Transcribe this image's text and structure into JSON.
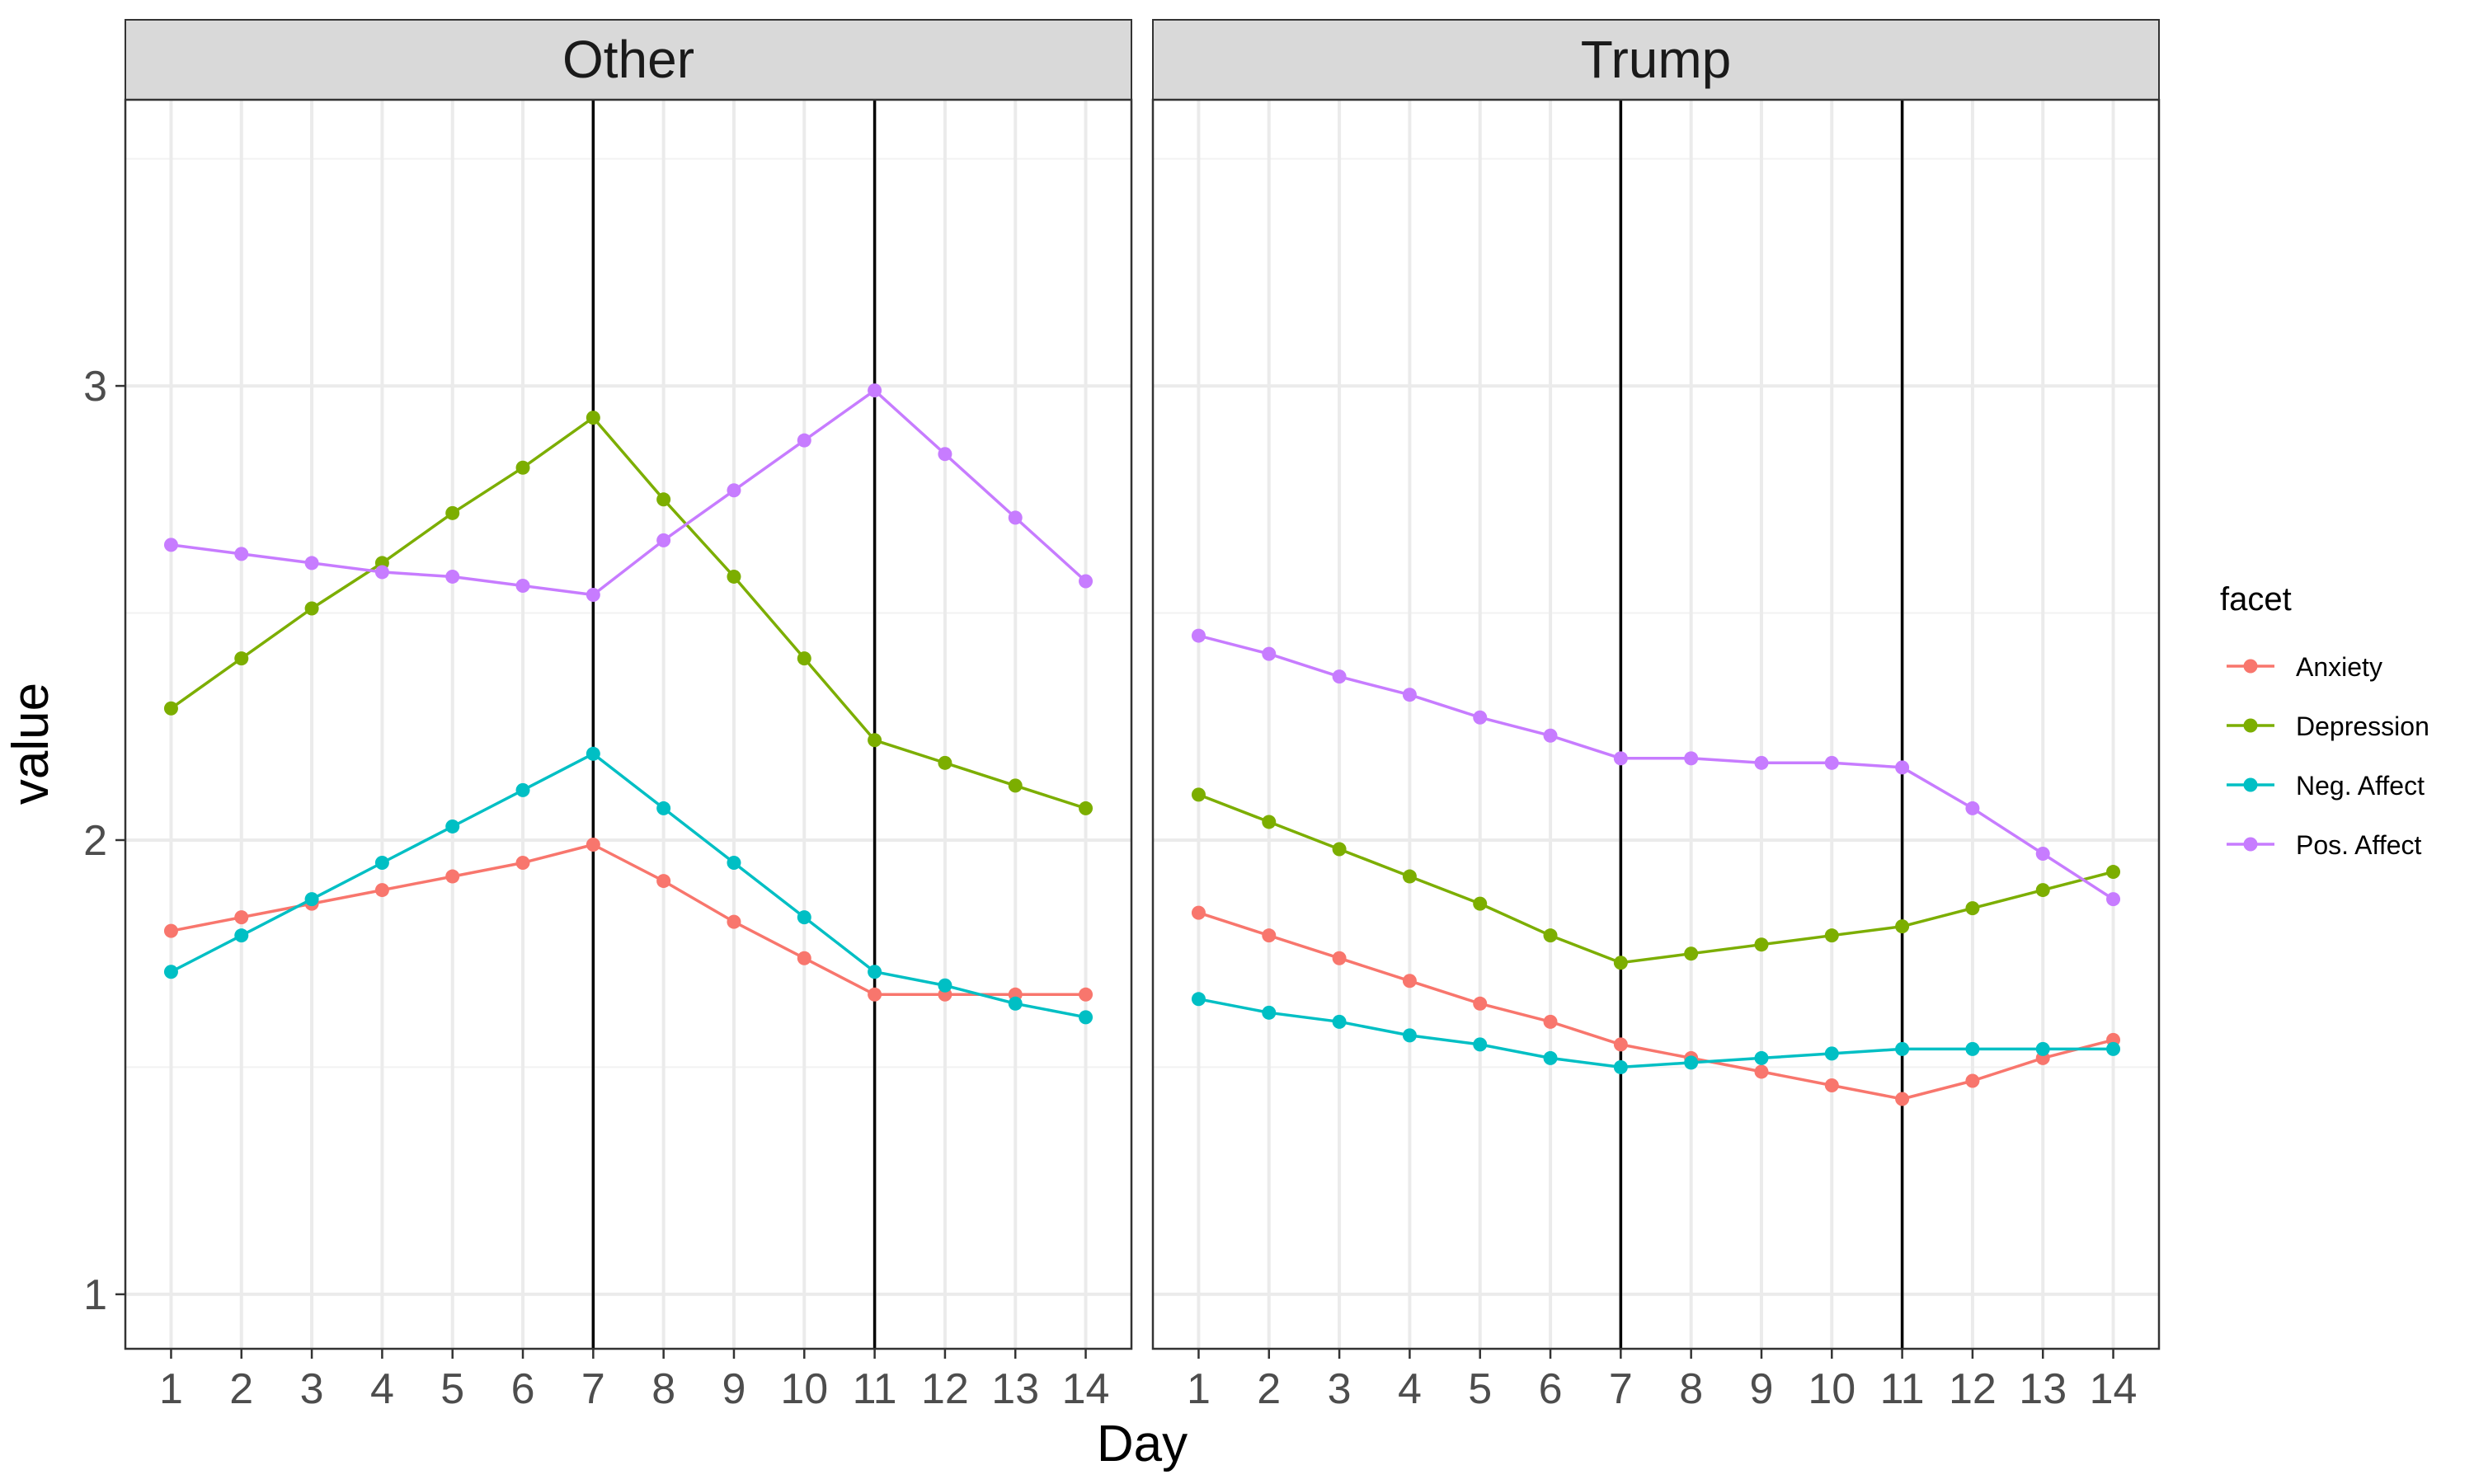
{
  "chart_data": {
    "type": "line",
    "facet_var": "facet",
    "ylabel": "value",
    "xlabel": "Day",
    "x": [
      1,
      2,
      3,
      4,
      5,
      6,
      7,
      8,
      9,
      10,
      11,
      12,
      13,
      14
    ],
    "x_tick_labels": [
      "1",
      "2",
      "3",
      "4",
      "5",
      "6",
      "7",
      "8",
      "9",
      "10",
      "11",
      "12",
      "13",
      "14"
    ],
    "y_ticks": [
      1,
      2,
      3
    ],
    "y_tick_labels": [
      "1",
      "2",
      "3"
    ],
    "ylim": [
      0.88,
      3.63
    ],
    "xlim": [
      0.35,
      14.65
    ],
    "vlines": [
      7,
      11
    ],
    "grid": true,
    "legend": {
      "title": "facet",
      "position": "right",
      "entries": [
        "Anxiety",
        "Depression",
        "Neg. Affect",
        "Pos. Affect"
      ]
    },
    "colors": {
      "Anxiety": "#F8766D",
      "Depression": "#7CAE00",
      "Neg. Affect": "#00BFC4",
      "Pos. Affect": "#C77CFF"
    },
    "panels": [
      {
        "strip": "Other",
        "series": [
          {
            "name": "Anxiety",
            "values": [
              1.8,
              1.83,
              1.86,
              1.89,
              1.92,
              1.95,
              1.99,
              1.91,
              1.82,
              1.74,
              1.66,
              1.66,
              1.66,
              1.66
            ]
          },
          {
            "name": "Depression",
            "values": [
              2.29,
              2.4,
              2.51,
              2.61,
              2.72,
              2.82,
              2.93,
              2.75,
              2.58,
              2.4,
              2.22,
              2.17,
              2.12,
              2.07
            ]
          },
          {
            "name": "Neg. Affect",
            "values": [
              1.71,
              1.79,
              1.87,
              1.95,
              2.03,
              2.11,
              2.19,
              2.07,
              1.95,
              1.83,
              1.71,
              1.68,
              1.64,
              1.61
            ]
          },
          {
            "name": "Pos. Affect",
            "values": [
              2.65,
              2.63,
              2.61,
              2.59,
              2.58,
              2.56,
              2.54,
              2.66,
              2.77,
              2.88,
              2.99,
              2.85,
              2.71,
              2.57
            ]
          }
        ]
      },
      {
        "strip": "Trump",
        "series": [
          {
            "name": "Anxiety",
            "values": [
              1.84,
              1.79,
              1.74,
              1.69,
              1.64,
              1.6,
              1.55,
              1.52,
              1.49,
              1.46,
              1.43,
              1.47,
              1.52,
              1.56
            ]
          },
          {
            "name": "Depression",
            "values": [
              2.1,
              2.04,
              1.98,
              1.92,
              1.86,
              1.79,
              1.73,
              1.75,
              1.77,
              1.79,
              1.81,
              1.85,
              1.89,
              1.93
            ]
          },
          {
            "name": "Neg. Affect",
            "values": [
              1.65,
              1.62,
              1.6,
              1.57,
              1.55,
              1.52,
              1.5,
              1.51,
              1.52,
              1.53,
              1.54,
              1.54,
              1.54,
              1.54
            ]
          },
          {
            "name": "Pos. Affect",
            "values": [
              2.45,
              2.41,
              2.36,
              2.32,
              2.27,
              2.23,
              2.18,
              2.18,
              2.17,
              2.17,
              2.16,
              2.07,
              1.97,
              1.87
            ]
          }
        ]
      }
    ]
  }
}
